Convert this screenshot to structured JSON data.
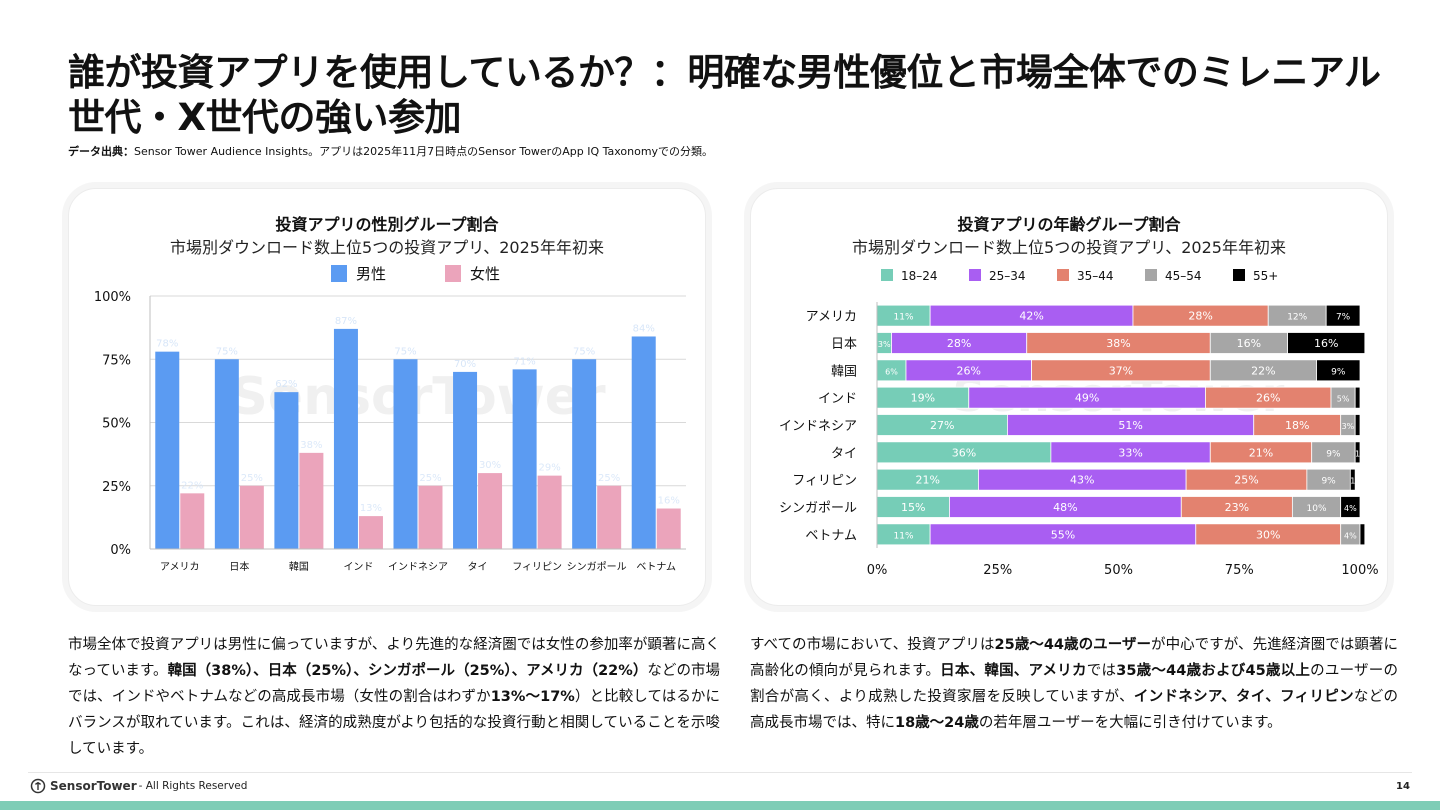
{
  "page": {
    "title": "誰が投資アプリを使用しているか？：明確な男性優位と市場全体でのミレニアル世代・X世代の強い参加",
    "source_label": "データ出典：",
    "source_text": "Sensor Tower Audience Insights。アプリは2025年11月7日時点のSensor TowerのApp IQ Taxonomyでの分類。",
    "left_paragraph": [
      {
        "text": "市場全体で投資アプリは男性に偏っていますが、より先進的な経済圏では女性の参加率が顕著に高くなっています。",
        "bold": false
      },
      {
        "text": "韓国（38%）、日本（25%）、シンガポール（25%）、アメリカ（22%）",
        "bold": true
      },
      {
        "text": "などの市場では、インドやベトナムなどの高成長市場（女性の割合はわずか",
        "bold": false
      },
      {
        "text": "13%〜17%",
        "bold": true
      },
      {
        "text": "）と比較してはるかにバランスが取れています。これは、経済的成熟度がより包括的な投資行動と相関していることを示唆しています。",
        "bold": false
      }
    ],
    "right_paragraph": [
      {
        "text": "すべての市場において、投資アプリは",
        "bold": false
      },
      {
        "text": "25歳〜44歳のユーザー",
        "bold": true
      },
      {
        "text": "が中心ですが、先進経済圏では顕著に高齢化の傾向が見られます。",
        "bold": false
      },
      {
        "text": "日本、韓国、アメリカ",
        "bold": true
      },
      {
        "text": "では",
        "bold": false
      },
      {
        "text": "35歳〜44歳および45歳以上",
        "bold": true
      },
      {
        "text": "のユーザーの割合が高く、より成熟した投資家層を反映していますが、",
        "bold": false
      },
      {
        "text": "インドネシア、タイ、フィリピン",
        "bold": true
      },
      {
        "text": "などの高成長市場では、特に",
        "bold": false
      },
      {
        "text": "18歳〜24歳",
        "bold": true
      },
      {
        "text": "の若年層ユーザーを大幅に引き付けています。",
        "bold": false
      }
    ],
    "footer_brand": "SensorTower",
    "footer_rights": "- All Rights Reserved",
    "page_number": "14",
    "watermark": "SensorTower"
  },
  "chart_data": [
    {
      "type": "bar",
      "title": "投資アプリの性別グループ割合",
      "subtitle": "市場別ダウンロード数上位5つの投資アプリ、2025年年初来",
      "categories": [
        "アメリカ",
        "日本",
        "韓国",
        "インド",
        "インドネシア",
        "タイ",
        "フィリピン",
        "シンガポール",
        "ベトナム"
      ],
      "series": [
        {
          "name": "男性",
          "color": "#5b9bf2",
          "values": [
            78,
            75,
            62,
            87,
            75,
            70,
            71,
            75,
            84
          ]
        },
        {
          "name": "女性",
          "color": "#eba4bb",
          "values": [
            22,
            25,
            38,
            13,
            25,
            30,
            29,
            25,
            16
          ]
        }
      ],
      "yticks": [
        "0%",
        "25%",
        "50%",
        "75%",
        "100%"
      ],
      "ylim": [
        0,
        100
      ],
      "legend": "top",
      "grid": true
    },
    {
      "type": "bar",
      "orientation": "horizontal-stacked",
      "title": "投資アプリの年齢グループ割合",
      "subtitle": "市場別ダウンロード数上位5つの投資アプリ、2025年年初来",
      "categories": [
        "アメリカ",
        "日本",
        "韓国",
        "インド",
        "インドネシア",
        "タイ",
        "フィリピン",
        "シンガポール",
        "ベトナム"
      ],
      "series": [
        {
          "name": "18–24",
          "color": "#76cdb7",
          "values": [
            11,
            3,
            6,
            19,
            27,
            36,
            21,
            15,
            11
          ]
        },
        {
          "name": "25–34",
          "color": "#a95ef2",
          "values": [
            42,
            28,
            26,
            49,
            51,
            33,
            43,
            48,
            55
          ]
        },
        {
          "name": "35–44",
          "color": "#e3826f",
          "values": [
            28,
            38,
            37,
            26,
            18,
            21,
            25,
            23,
            30
          ]
        },
        {
          "name": "45–54",
          "color": "#a6a6a6",
          "values": [
            12,
            16,
            22,
            5,
            3,
            9,
            9,
            10,
            4
          ]
        },
        {
          "name": "55+",
          "color": "#000000",
          "values": [
            7,
            16,
            9,
            1,
            1,
            1,
            1,
            4,
            1
          ]
        }
      ],
      "data_labels": [
        [
          "11%",
          "42%",
          "28%",
          "12%",
          "7%"
        ],
        [
          "3%",
          "28%",
          "38%",
          "16%",
          "16%"
        ],
        [
          "6%",
          "26%",
          "37%",
          "22%",
          "9%"
        ],
        [
          "19%",
          "49%",
          "26%",
          "5%",
          ""
        ],
        [
          "27%",
          "51%",
          "18%",
          "3%",
          ""
        ],
        [
          "36%",
          "33%",
          "21%",
          "9%",
          "1"
        ],
        [
          "21%",
          "43%",
          "25%",
          "9%",
          "1"
        ],
        [
          "15%",
          "48%",
          "23%",
          "10%",
          "4%"
        ],
        [
          "11%",
          "55%",
          "30%",
          "4%",
          ""
        ]
      ],
      "xticks": [
        "0%",
        "25%",
        "50%",
        "75%",
        "100%"
      ],
      "xlim": [
        0,
        100
      ],
      "legend": "top"
    }
  ]
}
